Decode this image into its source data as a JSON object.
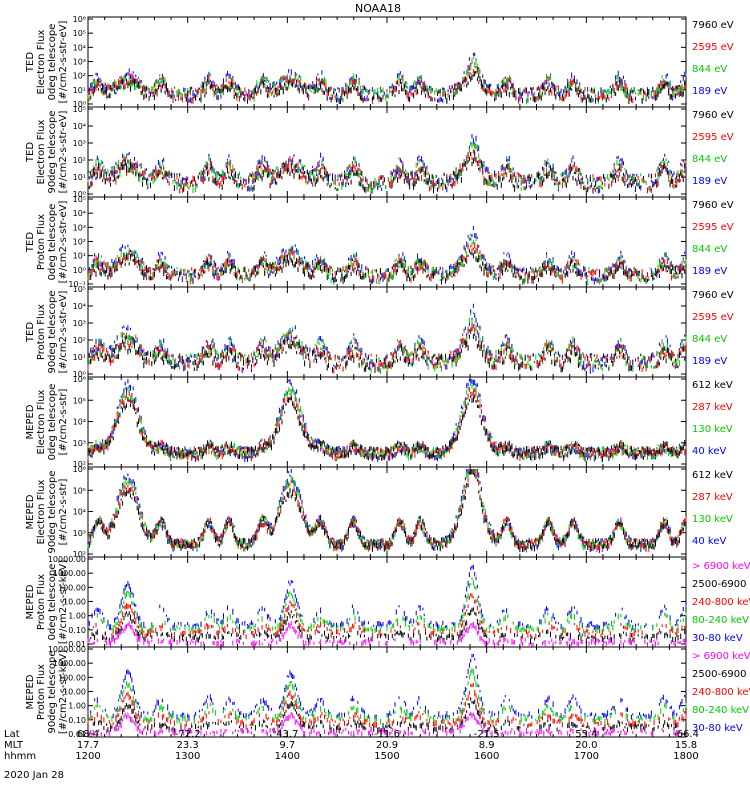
{
  "chart_data": {
    "type": "line",
    "title": "NOAA18",
    "date": "2020 Jan 28",
    "x_axis": {
      "rows": [
        {
          "label": "Lat",
          "values": [
            "68.4",
            "-72.2",
            "43.7",
            "-11.6",
            "-21.5",
            "55.4",
            "-66.4"
          ]
        },
        {
          "label": "MLT",
          "values": [
            "17.7",
            "23.3",
            "9.7",
            "20.9",
            "8.9",
            "20.0",
            "15.8"
          ]
        },
        {
          "label": "hhmm",
          "values": [
            "1200",
            "1300",
            "1400",
            "1500",
            "1600",
            "1700",
            "1800"
          ]
        }
      ],
      "time_range": [
        1200,
        1800
      ]
    },
    "colors": {
      "black": "#000000",
      "red": "#ff0000",
      "green": "#00cc00",
      "blue": "#0000ff",
      "magenta": "#ff00ff"
    },
    "panels": [
      {
        "name": "ted-electron-0deg",
        "ylabel": [
          "TED",
          "Electron Flux",
          "0deg telescope",
          "[#/cm2-s-str-eV]"
        ],
        "yticks": [
          "10⁰",
          "10¹",
          "10²",
          "10³",
          "10⁴",
          "10⁵",
          "10⁶"
        ],
        "ylog": [
          0,
          6
        ],
        "legend": [
          {
            "label": "7960 eV",
            "color": "black"
          },
          {
            "label": "2595 eV",
            "color": "red"
          },
          {
            "label": "844 eV",
            "color": "green"
          },
          {
            "label": "189 eV",
            "color": "blue"
          }
        ]
      },
      {
        "name": "ted-electron-90deg",
        "ylabel": [
          "TED",
          "Electron Flux",
          "90deg telescope",
          "[#/cm2-s-str-eV]"
        ],
        "yticks": [
          "10⁰",
          "10¹",
          "10²",
          "10³",
          "10⁴",
          "10⁵"
        ],
        "ylog": [
          0,
          5
        ],
        "legend": [
          {
            "label": "7960 eV",
            "color": "black"
          },
          {
            "label": "2595 eV",
            "color": "red"
          },
          {
            "label": "844 eV",
            "color": "green"
          },
          {
            "label": "189 eV",
            "color": "blue"
          }
        ]
      },
      {
        "name": "ted-proton-0deg",
        "ylabel": [
          "TED",
          "Proton Flux",
          "0deg telescope",
          "[#/cm2-s-str-eV]"
        ],
        "yticks": [
          "10⁻¹",
          "10⁰",
          "10¹",
          "10²",
          "10³",
          "10⁴",
          "10⁵"
        ],
        "ylog": [
          -1,
          5
        ],
        "legend": [
          {
            "label": "7960 eV",
            "color": "black"
          },
          {
            "label": "2595 eV",
            "color": "red"
          },
          {
            "label": "844 eV",
            "color": "green"
          },
          {
            "label": "189 eV",
            "color": "blue"
          }
        ]
      },
      {
        "name": "ted-proton-90deg",
        "ylabel": [
          "TED",
          "Proton Flux",
          "90deg telescope",
          "[#/cm2-s-str-eV]"
        ],
        "yticks": [
          "10⁰",
          "10¹",
          "10²",
          "10³",
          "10⁴",
          "10⁵"
        ],
        "ylog": [
          0,
          5
        ],
        "legend": [
          {
            "label": "7960 eV",
            "color": "black"
          },
          {
            "label": "2595 eV",
            "color": "red"
          },
          {
            "label": "844 eV",
            "color": "green"
          },
          {
            "label": "189 eV",
            "color": "blue"
          }
        ]
      },
      {
        "name": "meped-electron-0deg",
        "ylabel": [
          "MEPED",
          "Electron Flux",
          "0deg telescope",
          "[#/cm2-s-str]"
        ],
        "yticks": [
          "10²",
          "10³",
          "10⁴",
          "10⁵",
          "10⁶"
        ],
        "ylog": [
          2,
          6
        ],
        "legend": [
          {
            "label": "612 keV",
            "color": "black"
          },
          {
            "label": "287 keV",
            "color": "red"
          },
          {
            "label": "130 keV",
            "color": "green"
          },
          {
            "label": "40 keV",
            "color": "blue"
          }
        ]
      },
      {
        "name": "meped-electron-90deg",
        "ylabel": [
          "MEPED",
          "Electron Flux",
          "90deg telescope",
          "[#/cm2-s-str]"
        ],
        "yticks": [
          "10²",
          "10³",
          "10⁴",
          "10⁵",
          "10⁶"
        ],
        "ylog": [
          1.5,
          6
        ],
        "legend": [
          {
            "label": "612 keV",
            "color": "black"
          },
          {
            "label": "287 keV",
            "color": "red"
          },
          {
            "label": "130 keV",
            "color": "green"
          },
          {
            "label": "40 keV",
            "color": "blue"
          }
        ]
      },
      {
        "name": "meped-proton-0deg",
        "ylabel": [
          "MEPED",
          "Proton Flux",
          "0deg telescope",
          "[#/cm2-s-sr-keV]"
        ],
        "yticks": [
          "0.01",
          "0.10",
          "1.00",
          "10.00",
          "100.00",
          "1000.00",
          "10000.00"
        ],
        "ylog": [
          -2,
          4
        ],
        "legend": [
          {
            "label": "> 6900 keV",
            "color": "magenta"
          },
          {
            "label": "2500-6900",
            "color": "black"
          },
          {
            "label": "240-800 keV",
            "color": "red"
          },
          {
            "label": "80-240 keV",
            "color": "green"
          },
          {
            "label": "30-80 keV",
            "color": "blue"
          }
        ]
      },
      {
        "name": "meped-proton-90deg",
        "ylabel": [
          "MEPED",
          "Proton Flux",
          "90deg telescope",
          "[#/cm2-s-sr-keV]"
        ],
        "yticks": [
          "0.01",
          "0.10",
          "1.00",
          "10.00",
          "100.00",
          "1000.00",
          "10000.00"
        ],
        "ylog": [
          -2,
          4
        ],
        "legend": [
          {
            "label": "> 6900 keV",
            "color": "magenta"
          },
          {
            "label": "2500-6900",
            "color": "black"
          },
          {
            "label": "240-800 keV",
            "color": "red"
          },
          {
            "label": "80-240 keV",
            "color": "green"
          },
          {
            "label": "30-80 keV",
            "color": "blue"
          }
        ]
      }
    ],
    "radiation_belt_peaks_hhmm": [
      1224,
      1402,
      1551
    ],
    "auroral_crossings_hhmm": [
      1206,
      1244,
      1313,
      1325,
      1345,
      1420,
      1440,
      1508,
      1520,
      1552,
      1612,
      1637,
      1652,
      1720,
      1747,
      1800
    ]
  }
}
